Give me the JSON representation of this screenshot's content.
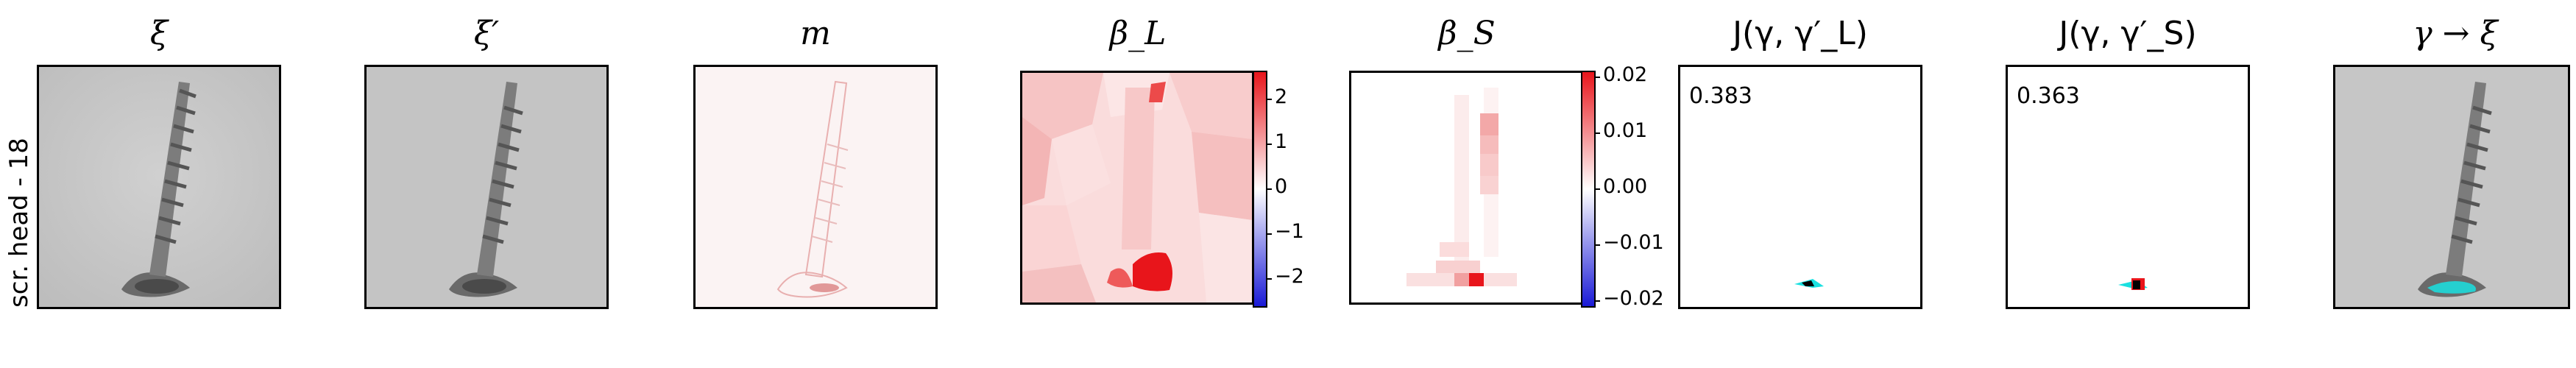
{
  "row_label": "scr. head - 18",
  "panels": {
    "xi": {
      "title": "ξ"
    },
    "xi_prime": {
      "title": "ξ′"
    },
    "m": {
      "title": "m"
    },
    "beta_L": {
      "title": "β_L",
      "colorbar_ticks": [
        "2",
        "1",
        "0",
        "−1",
        "−2"
      ]
    },
    "beta_S": {
      "title": "β_S",
      "colorbar_ticks": [
        "0.02",
        "0.01",
        "0.00",
        "−0.01",
        "−0.02"
      ]
    },
    "J_L": {
      "title": "J(γ, γ′_L)",
      "score": "0.383"
    },
    "J_S": {
      "title": "J(γ, γ′_S)",
      "score": "0.363"
    },
    "gamma_xi": {
      "title": "γ → ξ"
    }
  },
  "colors": {
    "red": "#e8151b",
    "blue": "#1a1ad6",
    "cyan": "#19e0e0",
    "gray_bg": "#c6c6c6"
  }
}
